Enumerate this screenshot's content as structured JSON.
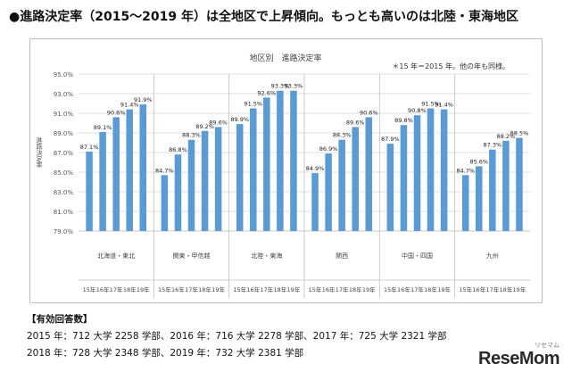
{
  "headline": "●進路決定率（2015〜2019 年）は全地区で上昇傾向。もっとも高いのは北陸・東海地区",
  "chart_data": {
    "type": "bar",
    "title": "地区別　進路決定率",
    "note": "＊15 年＝2015 年。他の年も同様。",
    "ylabel": "進路決定率",
    "ylim": [
      79.0,
      95.0
    ],
    "yticks": [
      "79.0%",
      "81.0%",
      "83.0%",
      "85.0%",
      "87.0%",
      "89.0%",
      "91.0%",
      "93.0%",
      "95.0%"
    ],
    "years": [
      "15年",
      "16年",
      "17年",
      "18年",
      "19年"
    ],
    "groups": [
      {
        "name": "北海道・東北",
        "values": [
          87.1,
          89.1,
          90.6,
          91.4,
          91.9
        ],
        "labels": [
          "87.1%",
          "89.1%",
          "90.6%",
          "91.4%",
          "91.9%"
        ]
      },
      {
        "name": "関東・甲信越",
        "values": [
          84.7,
          86.8,
          88.3,
          89.2,
          89.6
        ],
        "labels": [
          "84.7%",
          "86.8%",
          "88.3%",
          "89.2%",
          "89.6%"
        ]
      },
      {
        "name": "北陸・東海",
        "values": [
          89.9,
          91.5,
          92.6,
          93.3,
          93.3
        ],
        "labels": [
          "89.9%",
          "91.5%",
          "92.6%",
          "93.3%",
          "93.3%"
        ]
      },
      {
        "name": "関西",
        "values": [
          84.9,
          86.9,
          88.3,
          89.6,
          90.6
        ],
        "labels": [
          "84.9%",
          "86.9%",
          "88.3%",
          "89.6%",
          "90.6%"
        ]
      },
      {
        "name": "中国・四国",
        "values": [
          87.9,
          89.8,
          90.8,
          91.5,
          91.4
        ],
        "labels": [
          "87.9%",
          "89.8%",
          "90.8%",
          "91.5%",
          "91.4%"
        ]
      },
      {
        "name": "九州",
        "values": [
          84.7,
          85.6,
          87.3,
          88.2,
          88.5
        ],
        "labels": [
          "84.7%",
          "85.6%",
          "87.3%",
          "88.2%",
          "88.5%"
        ]
      }
    ],
    "bar_color": "#5b9bd5",
    "grid": true
  },
  "answers": {
    "title": "【有効回答数】",
    "line1": "2015 年：712 大学 2258 学部、2016 年：716 大学 2278 学部、2017 年：725 大学 2321 学部",
    "line2": "2018 年：728 大学 2348 学部、2019 年：732 大学 2381 学部"
  },
  "logo": {
    "text": "ReseMom",
    "sub": "リセマム"
  }
}
